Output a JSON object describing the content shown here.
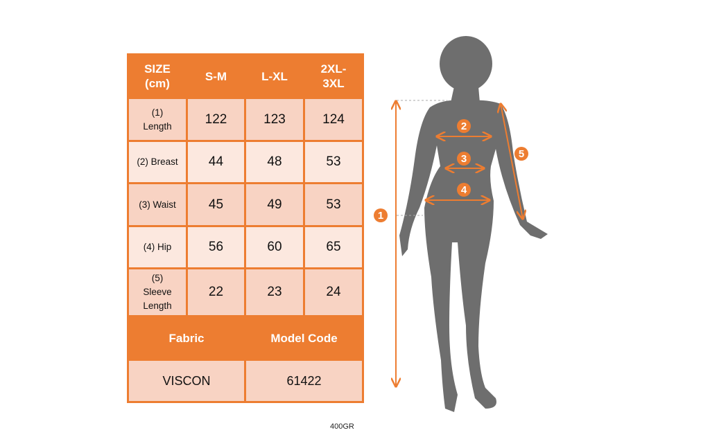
{
  "table": {
    "header": [
      "SIZE (cm)",
      "S-M",
      "L-XL",
      "2XL-3XL"
    ],
    "rows": [
      {
        "label": "(1) Length",
        "values": [
          "122",
          "123",
          "124"
        ]
      },
      {
        "label": "(2) Breast",
        "values": [
          "44",
          "48",
          "53"
        ]
      },
      {
        "label": "(3) Waist",
        "values": [
          "45",
          "49",
          "53"
        ]
      },
      {
        "label": "(4) Hip",
        "values": [
          "56",
          "60",
          "65"
        ]
      },
      {
        "label": "(5) Sleeve Length",
        "values": [
          "22",
          "23",
          "24"
        ]
      }
    ],
    "footer_header": [
      "Fabric",
      "Model Code"
    ],
    "footer_values": [
      "VISCON",
      "61422"
    ]
  },
  "figure": {
    "markers": [
      "1",
      "2",
      "3",
      "4",
      "5"
    ]
  },
  "caption": "400GR",
  "colors": {
    "accent": "#ED7D31",
    "row_dark": "#F8D3C3",
    "row_light": "#FCE8DF",
    "silhouette": "#6E6E6E"
  }
}
